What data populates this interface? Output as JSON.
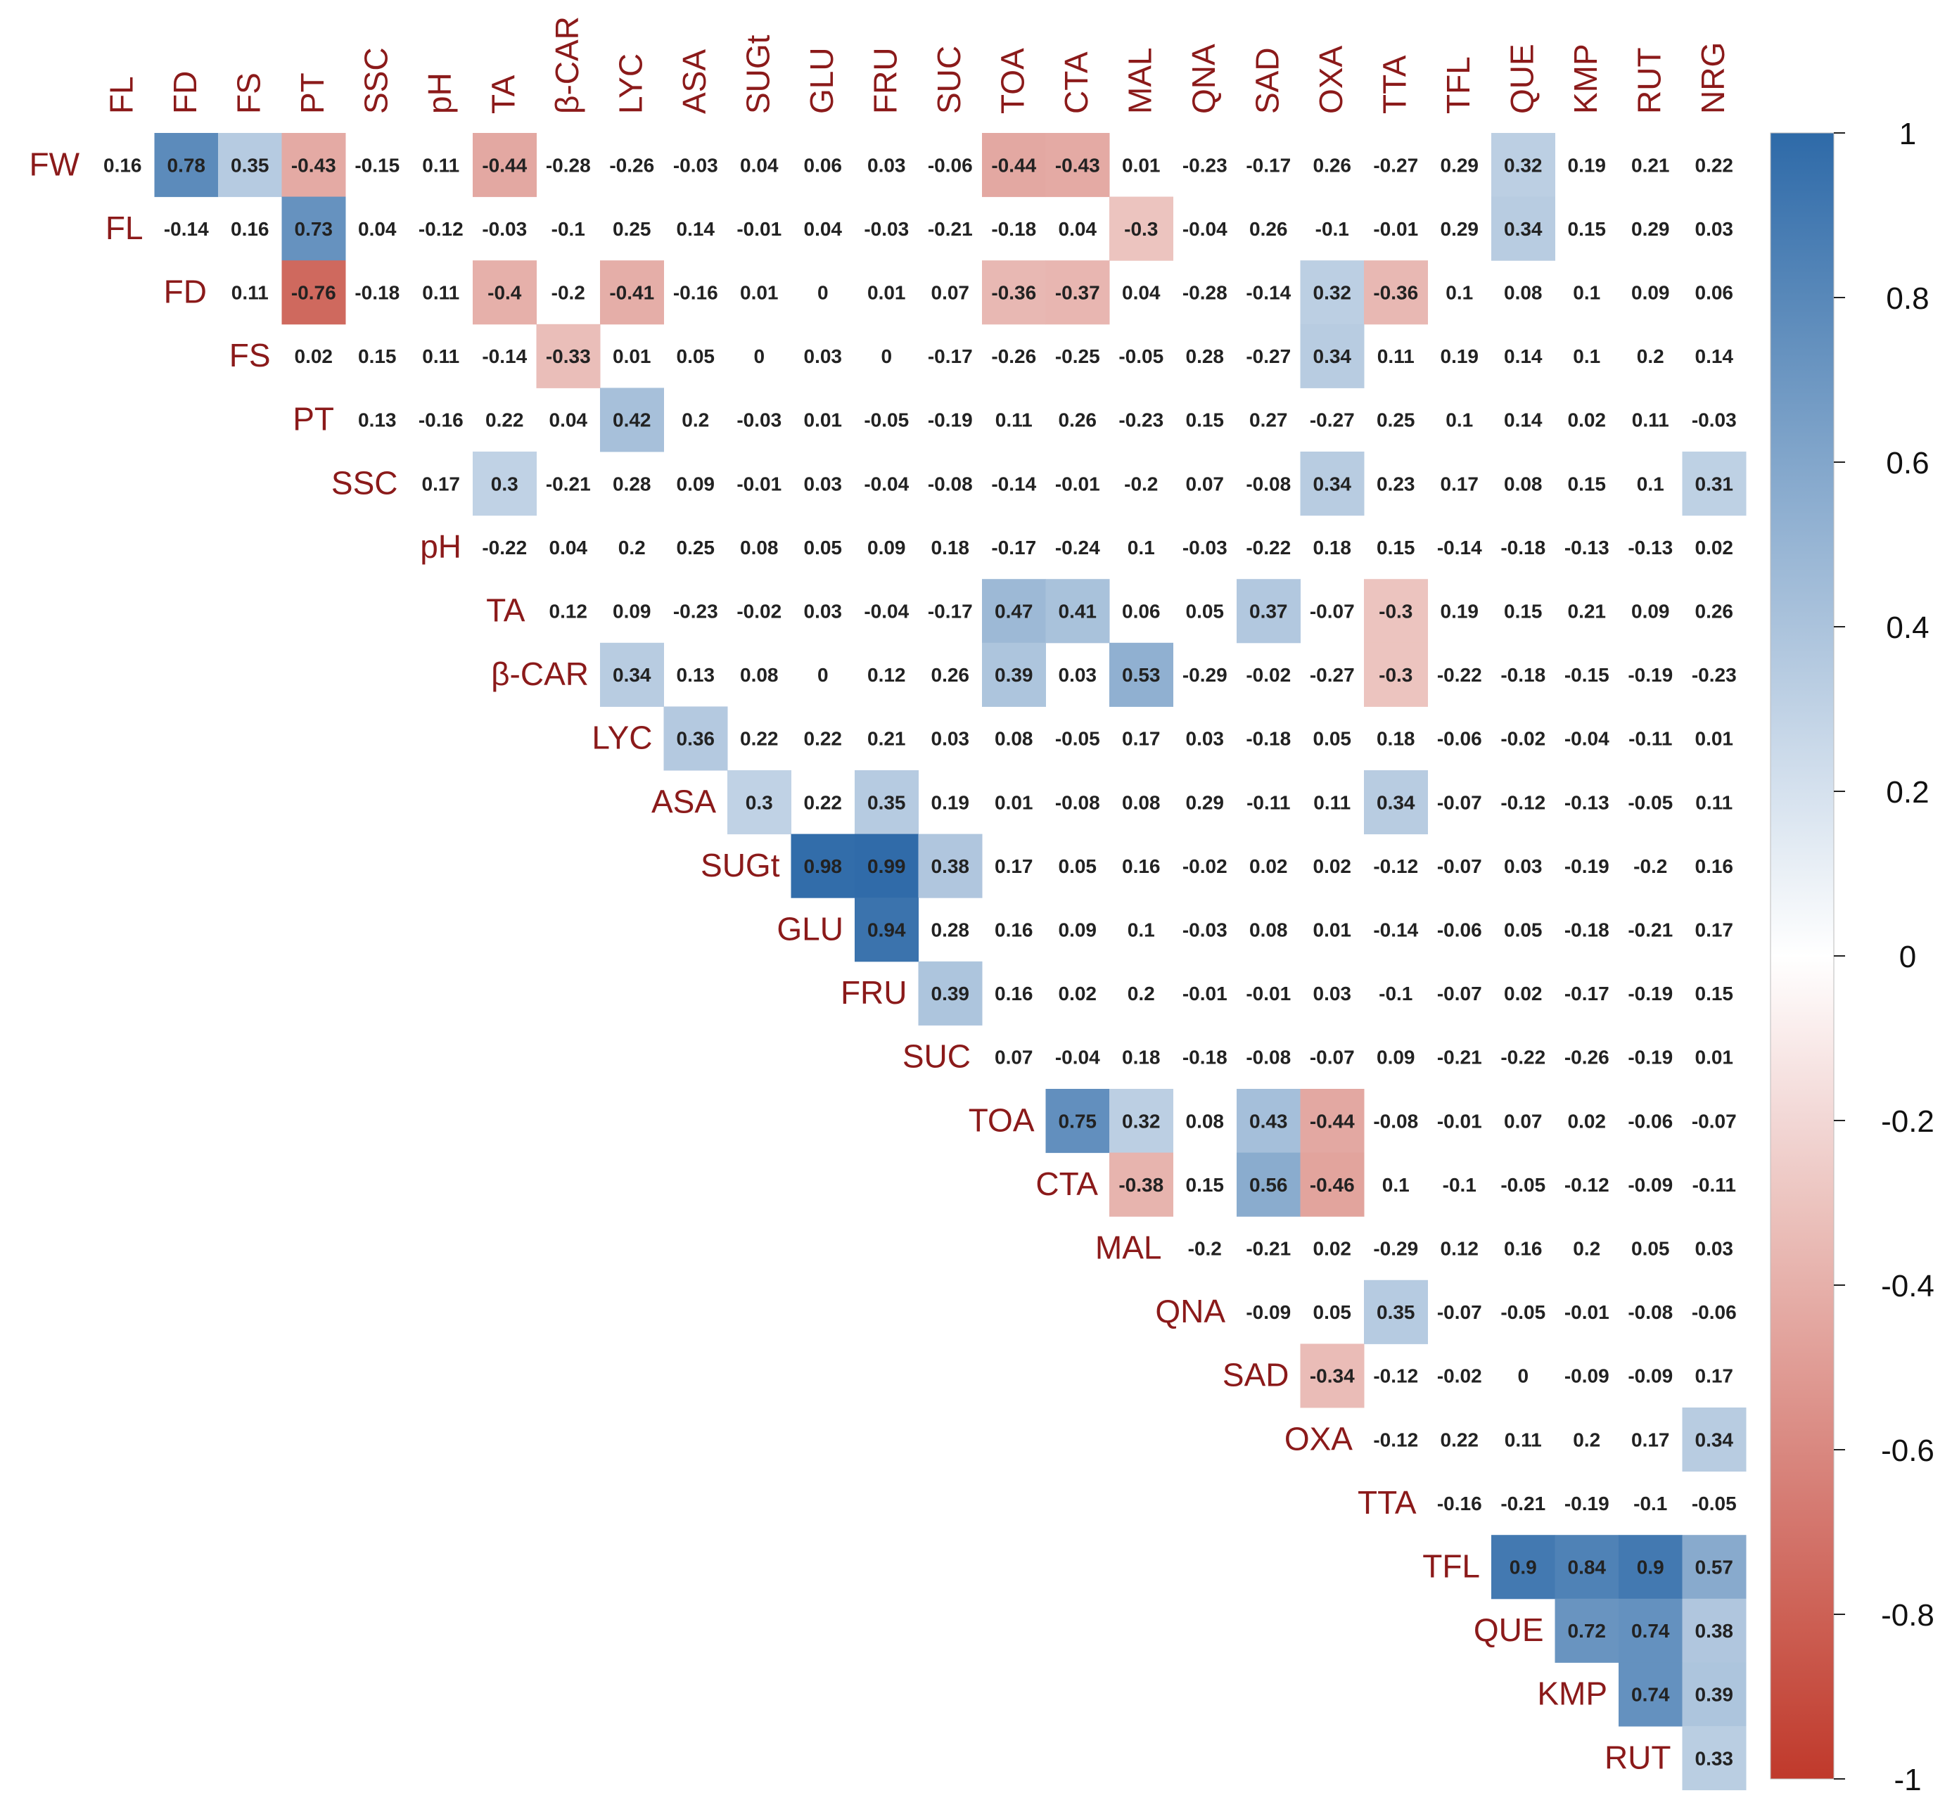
{
  "chart_data": {
    "type": "heatmap",
    "subtype": "upper-triangle correlation matrix",
    "title": "",
    "row_labels": [
      "FW",
      "FL",
      "FD",
      "FS",
      "PT",
      "SSC",
      "pH",
      "TA",
      "β-CAR",
      "LYC",
      "ASA",
      "SUGt",
      "GLU",
      "FRU",
      "SUC",
      "TOA",
      "CTA",
      "MAL",
      "QNA",
      "SAD",
      "OXA",
      "TTA",
      "TFL",
      "QUE",
      "KMP",
      "RUT"
    ],
    "col_labels": [
      "FL",
      "FD",
      "FS",
      "PT",
      "SSC",
      "pH",
      "TA",
      "β-CAR",
      "LYC",
      "ASA",
      "SUGt",
      "GLU",
      "FRU",
      "SUC",
      "TOA",
      "CTA",
      "MAL",
      "QNA",
      "SAD",
      "OXA",
      "TTA",
      "TFL",
      "QUE",
      "KMP",
      "RUT",
      "NRG"
    ],
    "rows": [
      {
        "label": "FW",
        "values": [
          "0.16",
          "0.78",
          "0.35",
          "-0.43",
          "-0.15",
          "0.11",
          "-0.44",
          "-0.28",
          "-0.26",
          "-0.03",
          "0.04",
          "0.06",
          "0.03",
          "-0.06",
          "-0.44",
          "-0.43",
          "0.01",
          "-0.23",
          "-0.17",
          "0.26",
          "-0.27",
          "0.29",
          "0.32",
          "0.19",
          "0.21",
          "0.22"
        ]
      },
      {
        "label": "FL",
        "values": [
          "-0.14",
          "0.16",
          "0.73",
          "0.04",
          "-0.12",
          "-0.03",
          "-0.1",
          "0.25",
          "0.14",
          "-0.01",
          "0.04",
          "-0.03",
          "-0.21",
          "-0.18",
          "0.04",
          "-0.3",
          "-0.04",
          "0.26",
          "-0.1",
          "-0.01",
          "0.29",
          "0.34",
          "0.15",
          "0.29",
          "0.03"
        ]
      },
      {
        "label": "FD",
        "values": [
          "0.11",
          "-0.76",
          "-0.18",
          "0.11",
          "-0.4",
          "-0.2",
          "-0.41",
          "-0.16",
          "0.01",
          "0",
          "0.01",
          "0.07",
          "-0.36",
          "-0.37",
          "0.04",
          "-0.28",
          "-0.14",
          "0.32",
          "-0.36",
          "0.1",
          "0.08",
          "0.1",
          "0.09",
          "0.06"
        ]
      },
      {
        "label": "FS",
        "values": [
          "0.02",
          "0.15",
          "0.11",
          "-0.14",
          "-0.33",
          "0.01",
          "0.05",
          "0",
          "0.03",
          "0",
          "-0.17",
          "-0.26",
          "-0.25",
          "-0.05",
          "0.28",
          "-0.27",
          "0.34",
          "0.11",
          "0.19",
          "0.14",
          "0.1",
          "0.2",
          "0.14"
        ]
      },
      {
        "label": "PT",
        "values": [
          "0.13",
          "-0.16",
          "0.22",
          "0.04",
          "0.42",
          "0.2",
          "-0.03",
          "0.01",
          "-0.05",
          "-0.19",
          "0.11",
          "0.26",
          "-0.23",
          "0.15",
          "0.27",
          "-0.27",
          "0.25",
          "0.1",
          "0.14",
          "0.02",
          "0.11",
          "-0.03"
        ]
      },
      {
        "label": "SSC",
        "values": [
          "0.17",
          "0.3",
          "-0.21",
          "0.28",
          "0.09",
          "-0.01",
          "0.03",
          "-0.04",
          "-0.08",
          "-0.14",
          "-0.01",
          "-0.2",
          "0.07",
          "-0.08",
          "0.34",
          "0.23",
          "0.17",
          "0.08",
          "0.15",
          "0.1",
          "0.31"
        ]
      },
      {
        "label": "pH",
        "values": [
          "-0.22",
          "0.04",
          "0.2",
          "0.25",
          "0.08",
          "0.05",
          "0.09",
          "0.18",
          "-0.17",
          "-0.24",
          "0.1",
          "-0.03",
          "-0.22",
          "0.18",
          "0.15",
          "-0.14",
          "-0.18",
          "-0.13",
          "-0.13",
          "0.02"
        ]
      },
      {
        "label": "TA",
        "values": [
          "0.12",
          "0.09",
          "-0.23",
          "-0.02",
          "0.03",
          "-0.04",
          "-0.17",
          "0.47",
          "0.41",
          "0.06",
          "0.05",
          "0.37",
          "-0.07",
          "-0.3",
          "0.19",
          "0.15",
          "0.21",
          "0.09",
          "0.26"
        ]
      },
      {
        "label": "β-CAR",
        "values": [
          "0.34",
          "0.13",
          "0.08",
          "0",
          "0.12",
          "0.26",
          "0.39",
          "0.03",
          "0.53",
          "-0.29",
          "-0.02",
          "-0.27",
          "-0.3",
          "-0.22",
          "-0.18",
          "-0.15",
          "-0.19",
          "-0.23"
        ]
      },
      {
        "label": "LYC",
        "values": [
          "0.36",
          "0.22",
          "0.22",
          "0.21",
          "0.03",
          "0.08",
          "-0.05",
          "0.17",
          "0.03",
          "-0.18",
          "0.05",
          "0.18",
          "-0.06",
          "-0.02",
          "-0.04",
          "-0.11",
          "0.01"
        ]
      },
      {
        "label": "ASA",
        "values": [
          "0.3",
          "0.22",
          "0.35",
          "0.19",
          "0.01",
          "-0.08",
          "0.08",
          "0.29",
          "-0.11",
          "0.11",
          "0.34",
          "-0.07",
          "-0.12",
          "-0.13",
          "-0.05",
          "0.11"
        ]
      },
      {
        "label": "SUGt",
        "values": [
          "0.98",
          "0.99",
          "0.38",
          "0.17",
          "0.05",
          "0.16",
          "-0.02",
          "0.02",
          "0.02",
          "-0.12",
          "-0.07",
          "0.03",
          "-0.19",
          "-0.2",
          "0.16"
        ]
      },
      {
        "label": "GLU",
        "values": [
          "0.94",
          "0.28",
          "0.16",
          "0.09",
          "0.1",
          "-0.03",
          "0.08",
          "0.01",
          "-0.14",
          "-0.06",
          "0.05",
          "-0.18",
          "-0.21",
          "0.17"
        ]
      },
      {
        "label": "FRU",
        "values": [
          "0.39",
          "0.16",
          "0.02",
          "0.2",
          "-0.01",
          "-0.01",
          "0.03",
          "-0.1",
          "-0.07",
          "0.02",
          "-0.17",
          "-0.19",
          "0.15"
        ]
      },
      {
        "label": "SUC",
        "values": [
          "0.07",
          "-0.04",
          "0.18",
          "-0.18",
          "-0.08",
          "-0.07",
          "0.09",
          "-0.21",
          "-0.22",
          "-0.26",
          "-0.19",
          "0.01"
        ]
      },
      {
        "label": "TOA",
        "values": [
          "0.75",
          "0.32",
          "0.08",
          "0.43",
          "-0.44",
          "-0.08",
          "-0.01",
          "0.07",
          "0.02",
          "-0.06",
          "-0.07"
        ]
      },
      {
        "label": "CTA",
        "values": [
          "-0.38",
          "0.15",
          "0.56",
          "-0.46",
          "0.1",
          "-0.1",
          "-0.05",
          "-0.12",
          "-0.09",
          "-0.11"
        ]
      },
      {
        "label": "MAL",
        "values": [
          "-0.2",
          "-0.21",
          "0.02",
          "-0.29",
          "0.12",
          "0.16",
          "0.2",
          "0.05",
          "0.03"
        ]
      },
      {
        "label": "QNA",
        "values": [
          "-0.09",
          "0.05",
          "0.35",
          "-0.07",
          "-0.05",
          "-0.01",
          "-0.08",
          "-0.06"
        ]
      },
      {
        "label": "SAD",
        "values": [
          "-0.34",
          "-0.12",
          "-0.02",
          "0",
          "-0.09",
          "-0.09",
          "0.17"
        ]
      },
      {
        "label": "OXA",
        "values": [
          "-0.12",
          "0.22",
          "0.11",
          "0.2",
          "0.17",
          "0.34"
        ]
      },
      {
        "label": "TTA",
        "values": [
          "-0.16",
          "-0.21",
          "-0.19",
          "-0.1",
          "-0.05"
        ]
      },
      {
        "label": "TFL",
        "values": [
          "0.9",
          "0.84",
          "0.9",
          "0.57"
        ]
      },
      {
        "label": "QUE",
        "values": [
          "0.72",
          "0.74",
          "0.38"
        ]
      },
      {
        "label": "KMP",
        "values": [
          "0.74",
          "0.39"
        ]
      },
      {
        "label": "RUT",
        "values": [
          "0.33"
        ]
      }
    ],
    "color_scale": {
      "range": [
        -1,
        1
      ],
      "ticks": [
        "1",
        "0.8",
        "0.6",
        "0.4",
        "0.2",
        "0",
        "-0.2",
        "-0.4",
        "-0.6",
        "-0.8",
        "-1"
      ],
      "tick_values": [
        1,
        0.8,
        0.6,
        0.4,
        0.2,
        0,
        -0.2,
        -0.4,
        -0.6,
        -0.8,
        -1
      ],
      "negative_color": "#c0392b",
      "midpoint_color": "#ffffff",
      "positive_color": "#2e6aa8",
      "fill_threshold": 0.3
    },
    "label_color": "#8b1a1a"
  }
}
